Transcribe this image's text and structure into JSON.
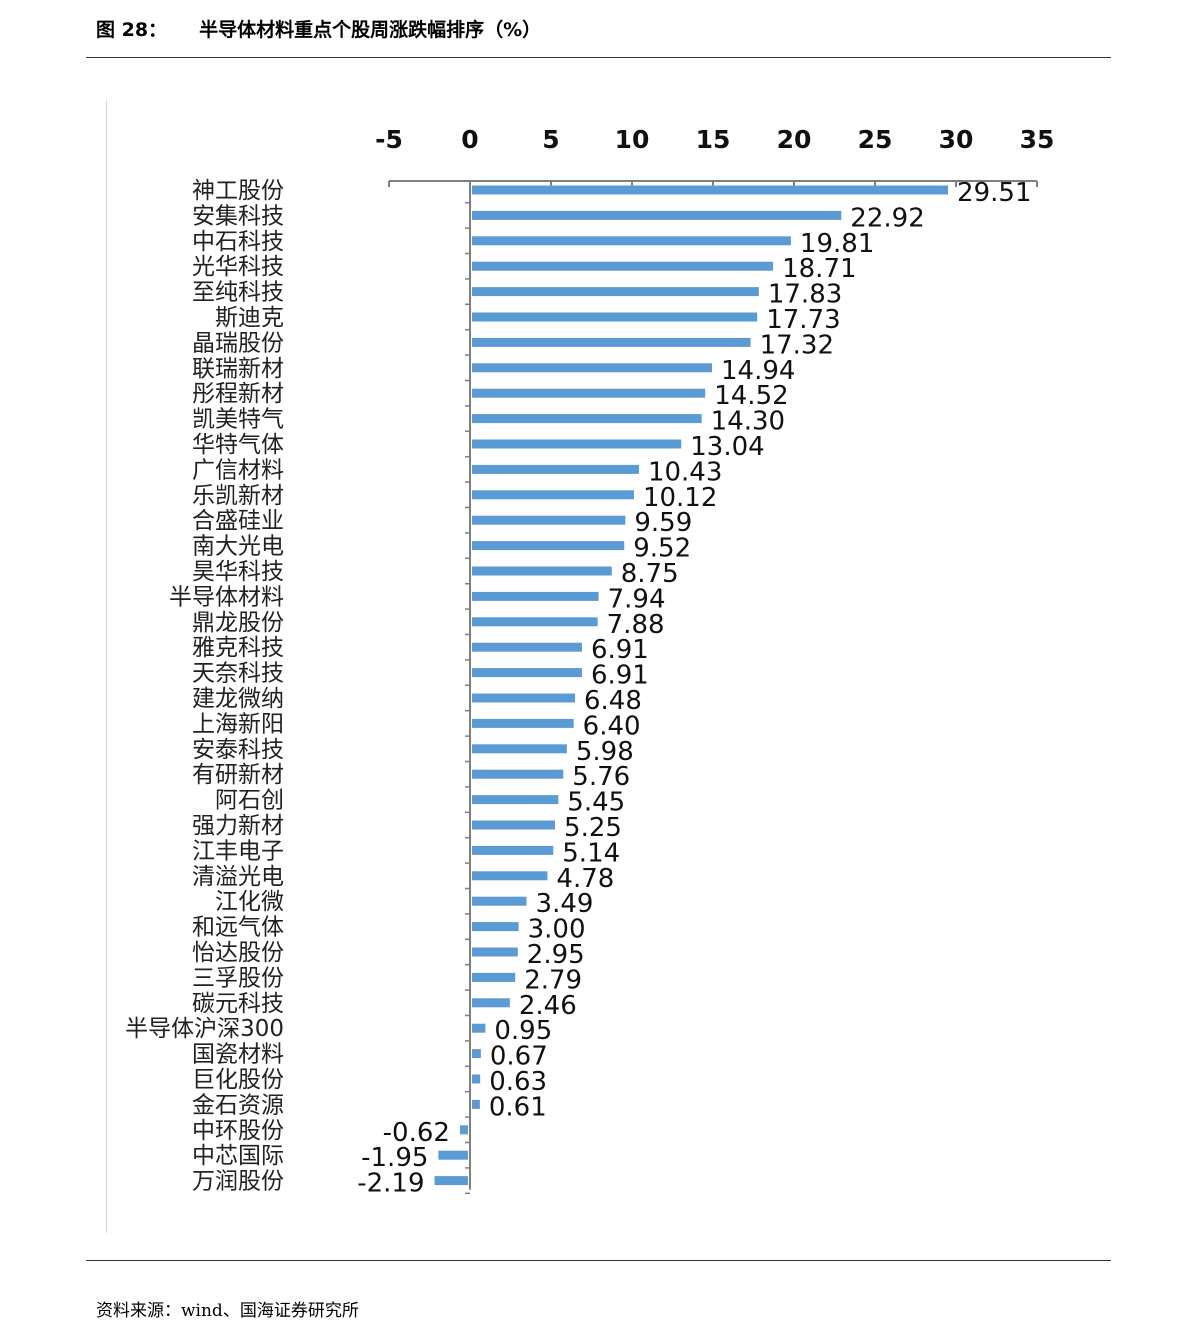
{
  "header": {
    "figure_number": "图 28：",
    "title": "半导体材料重点个股周涨跌幅排序（%）"
  },
  "footer": {
    "source": "资料来源：wind、国海证券研究所"
  },
  "chart_data": {
    "type": "bar",
    "orientation": "horizontal",
    "bar_color": "#5B9BD5",
    "xlim": [
      -5,
      35
    ],
    "xticks": [
      -5,
      0,
      5,
      10,
      15,
      20,
      25,
      30,
      35
    ],
    "tick_labels": [
      "-5",
      "0",
      "5",
      "10",
      "15",
      "20",
      "25",
      "30",
      "35"
    ],
    "axis_position": "top",
    "categories": [
      "神工股份",
      "安集科技",
      "中石科技",
      "光华科技",
      "至纯科技",
      "斯迪克",
      "晶瑞股份",
      "联瑞新材",
      "彤程新材",
      "凯美特气",
      "华特气体",
      "广信材料",
      "乐凯新材",
      "合盛硅业",
      "南大光电",
      "昊华科技",
      "半导体材料",
      "鼎龙股份",
      "雅克科技",
      "天奈科技",
      "建龙微纳",
      "上海新阳",
      "安泰科技",
      "有研新材",
      "阿石创",
      "强力新材",
      "江丰电子",
      "清溢光电",
      "江化微",
      "和远气体",
      "怡达股份",
      "三孚股份",
      "碳元科技",
      "半导体沪深300",
      "国瓷材料",
      "巨化股份",
      "金石资源",
      "中环股份",
      "中芯国际",
      "万润股份"
    ],
    "values": [
      29.51,
      22.92,
      19.81,
      18.71,
      17.83,
      17.73,
      17.32,
      14.94,
      14.52,
      14.3,
      13.04,
      10.43,
      10.12,
      9.59,
      9.52,
      8.75,
      7.94,
      7.88,
      6.91,
      6.91,
      6.48,
      6.4,
      5.98,
      5.76,
      5.45,
      5.25,
      5.14,
      4.78,
      3.49,
      3.0,
      2.95,
      2.79,
      2.46,
      0.95,
      0.67,
      0.63,
      0.61,
      -0.62,
      -1.95,
      -2.19
    ],
    "value_labels": [
      "29.51",
      "22.92",
      "19.81",
      "18.71",
      "17.83",
      "17.73",
      "17.32",
      "14.94",
      "14.52",
      "14.30",
      "13.04",
      "10.43",
      "10.12",
      "9.59",
      "9.52",
      "8.75",
      "7.94",
      "7.88",
      "6.91",
      "6.91",
      "6.48",
      "6.40",
      "5.98",
      "5.76",
      "5.45",
      "5.25",
      "5.14",
      "4.78",
      "3.49",
      "3.00",
      "2.95",
      "2.79",
      "2.46",
      "0.95",
      "0.67",
      "0.63",
      "0.61",
      "-0.62",
      "-1.95",
      "-2.19"
    ],
    "grid": false,
    "legend": "none"
  }
}
